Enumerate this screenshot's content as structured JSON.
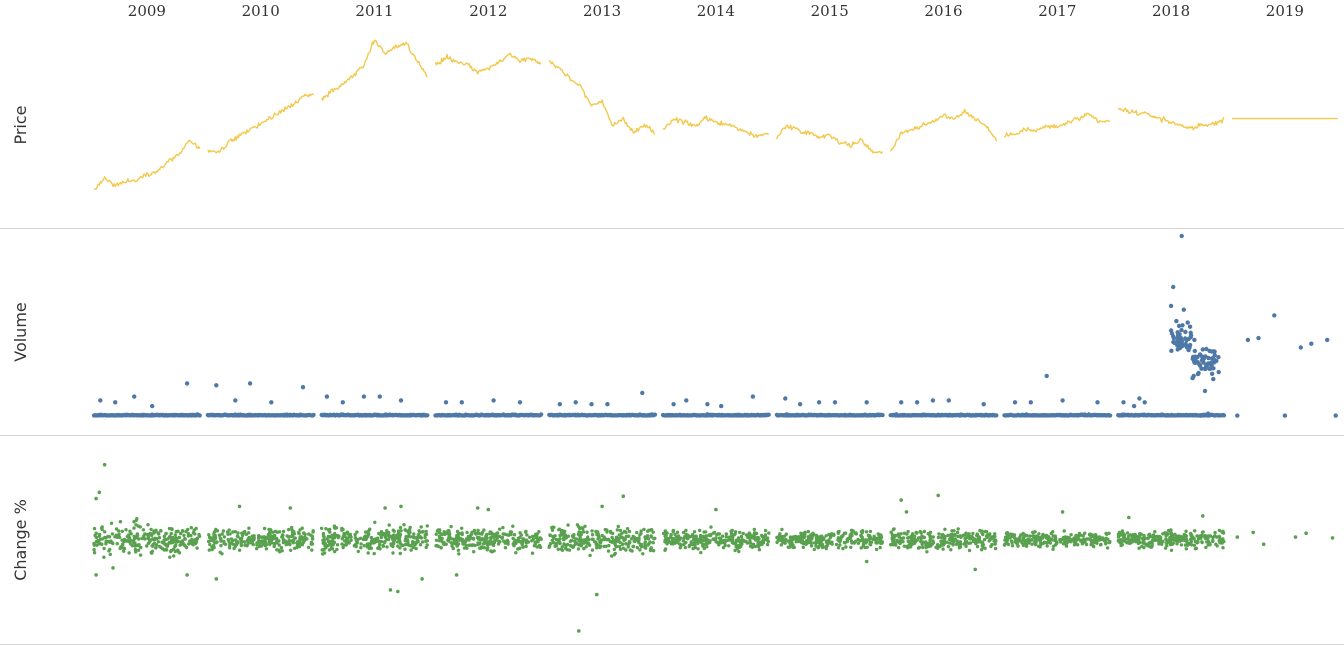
{
  "chart_data": {
    "type": "scatter",
    "layout": "small-multiples by year with three stacked panels",
    "years": [
      "2009",
      "2010",
      "2011",
      "2012",
      "2013",
      "2014",
      "2015",
      "2016",
      "2017",
      "2018",
      "2019"
    ],
    "panels": [
      {
        "name": "Price",
        "mark": "line",
        "color": "#f2c94c",
        "ylim": [
          0,
          100
        ],
        "series": [
          {
            "year": "2009",
            "values": [
              8,
              15,
              11,
              13,
              14,
              17,
              19,
              24,
              28,
              36,
              31
            ]
          },
          {
            "year": "2010",
            "values": [
              30,
              29,
              35,
              38,
              42,
              45,
              49,
              52,
              56,
              60,
              62
            ]
          },
          {
            "year": "2011",
            "values": [
              58,
              63,
              68,
              72,
              78,
              92,
              84,
              88,
              90,
              80,
              72
            ]
          },
          {
            "year": "2012",
            "values": [
              78,
              82,
              80,
              78,
              74,
              76,
              79,
              84,
              80,
              82,
              78
            ]
          },
          {
            "year": "2013",
            "values": [
              80,
              76,
              70,
              66,
              55,
              58,
              44,
              48,
              40,
              44,
              40
            ]
          },
          {
            "year": "2014",
            "values": [
              42,
              48,
              46,
              44,
              48,
              46,
              45,
              43,
              40,
              38,
              40
            ]
          },
          {
            "year": "2015",
            "values": [
              38,
              44,
              42,
              40,
              38,
              39,
              35,
              33,
              36,
              30,
              29
            ]
          },
          {
            "year": "2016",
            "values": [
              30,
              40,
              42,
              44,
              46,
              50,
              48,
              52,
              48,
              44,
              36
            ]
          },
          {
            "year": "2017",
            "values": [
              38,
              40,
              42,
              41,
              44,
              43,
              46,
              48,
              50,
              46,
              47
            ]
          },
          {
            "year": "2018",
            "values": [
              53,
              52,
              51,
              50,
              48,
              46,
              44,
              43,
              44,
              45,
              48
            ]
          },
          {
            "year": "2019",
            "values": [
              48,
              48,
              48,
              48,
              48,
              48,
              48,
              48,
              48,
              48,
              48
            ]
          }
        ]
      },
      {
        "name": "Volume",
        "mark": "scatter",
        "color": "#4e79a7",
        "ylim": [
          0,
          100
        ],
        "baseline": 5,
        "outliers": [
          {
            "year": "2009",
            "points": [
              [
                0.06,
                13
              ],
              [
                0.2,
                12
              ],
              [
                0.38,
                15
              ],
              [
                0.55,
                10
              ],
              [
                0.88,
                22
              ]
            ]
          },
          {
            "year": "2010",
            "points": [
              [
                0.08,
                21
              ],
              [
                0.26,
                13
              ],
              [
                0.4,
                22
              ],
              [
                0.6,
                12
              ],
              [
                0.9,
                20
              ]
            ]
          },
          {
            "year": "2011",
            "points": [
              [
                0.05,
                15
              ],
              [
                0.2,
                12
              ],
              [
                0.4,
                15
              ],
              [
                0.55,
                15
              ],
              [
                0.75,
                13
              ]
            ]
          },
          {
            "year": "2012",
            "points": [
              [
                0.1,
                12
              ],
              [
                0.25,
                12
              ],
              [
                0.55,
                13
              ],
              [
                0.8,
                12
              ]
            ]
          },
          {
            "year": "2013",
            "points": [
              [
                0.1,
                11
              ],
              [
                0.25,
                12
              ],
              [
                0.4,
                11
              ],
              [
                0.55,
                11
              ],
              [
                0.88,
                17
              ]
            ]
          },
          {
            "year": "2014",
            "points": [
              [
                0.1,
                11
              ],
              [
                0.22,
                13
              ],
              [
                0.42,
                11
              ],
              [
                0.55,
                10
              ],
              [
                0.85,
                15
              ]
            ]
          },
          {
            "year": "2015",
            "points": [
              [
                0.08,
                14
              ],
              [
                0.22,
                11
              ],
              [
                0.4,
                12
              ],
              [
                0.55,
                12
              ],
              [
                0.85,
                12
              ]
            ]
          },
          {
            "year": "2016",
            "points": [
              [
                0.1,
                12
              ],
              [
                0.25,
                12
              ],
              [
                0.4,
                13
              ],
              [
                0.55,
                13
              ],
              [
                0.88,
                11
              ]
            ]
          },
          {
            "year": "2017",
            "points": [
              [
                0.1,
                12
              ],
              [
                0.25,
                12
              ],
              [
                0.4,
                26
              ],
              [
                0.55,
                13
              ],
              [
                0.88,
                12
              ]
            ]
          },
          {
            "year": "2018",
            "points": [
              [
                0.05,
                12
              ],
              [
                0.15,
                10
              ],
              [
                0.2,
                14
              ],
              [
                0.25,
                12
              ],
              [
                0.6,
                100
              ],
              [
                0.52,
                73
              ],
              [
                0.5,
                63
              ],
              [
                0.62,
                61
              ],
              [
                0.55,
                55
              ],
              [
                0.68,
                52
              ],
              [
                0.58,
                48
              ],
              [
                0.72,
                45
              ],
              [
                0.65,
                41
              ],
              [
                0.8,
                40
              ],
              [
                0.75,
                36
              ],
              [
                0.9,
                30
              ],
              [
                0.95,
                28
              ],
              [
                0.82,
                18
              ],
              [
                0.85,
                6
              ],
              [
                0.78,
                5
              ]
            ]
          },
          {
            "year": "2019",
            "points": [
              [
                0.05,
                5
              ],
              [
                0.15,
                45
              ],
              [
                0.25,
                46
              ],
              [
                0.4,
                58
              ],
              [
                0.5,
                5
              ],
              [
                0.65,
                41
              ],
              [
                0.75,
                43
              ],
              [
                0.9,
                45
              ],
              [
                0.98,
                5
              ]
            ]
          }
        ]
      },
      {
        "name": "Change %",
        "mark": "scatter",
        "color": "#59a14f",
        "ylim": [
          -12,
          12
        ],
        "clusters": [
          {
            "year": "2009",
            "spread": 3.2,
            "extremes": [
              [
                0.02,
                5.2
              ],
              [
                0.05,
                6.0
              ],
              [
                0.1,
                9.5
              ],
              [
                0.18,
                -3.6
              ],
              [
                0.02,
                -4.5
              ],
              [
                0.88,
                -4.5
              ]
            ]
          },
          {
            "year": "2010",
            "spread": 2.4,
            "extremes": [
              [
                0.08,
                -5.0
              ],
              [
                0.78,
                4.0
              ],
              [
                0.3,
                4.2
              ]
            ]
          },
          {
            "year": "2011",
            "spread": 2.8,
            "extremes": [
              [
                0.65,
                -6.4
              ],
              [
                0.72,
                -6.6
              ],
              [
                0.6,
                4.0
              ],
              [
                0.75,
                4.2
              ],
              [
                0.95,
                -5.0
              ]
            ]
          },
          {
            "year": "2012",
            "spread": 2.5,
            "extremes": [
              [
                0.4,
                4.0
              ],
              [
                0.5,
                3.8
              ],
              [
                0.2,
                -4.5
              ]
            ]
          },
          {
            "year": "2013",
            "spread": 2.8,
            "extremes": [
              [
                0.28,
                -11.6
              ],
              [
                0.45,
                -7.0
              ],
              [
                0.7,
                5.5
              ],
              [
                0.5,
                4.2
              ]
            ]
          },
          {
            "year": "2014",
            "spread": 2.0,
            "extremes": [
              [
                0.5,
                3.8
              ]
            ]
          },
          {
            "year": "2015",
            "spread": 2.0,
            "extremes": [
              [
                0.85,
                -2.8
              ]
            ]
          },
          {
            "year": "2016",
            "spread": 2.2,
            "extremes": [
              [
                0.1,
                5.0
              ],
              [
                0.45,
                5.6
              ],
              [
                0.15,
                3.5
              ],
              [
                0.8,
                -3.8
              ]
            ]
          },
          {
            "year": "2017",
            "spread": 1.6,
            "extremes": [
              [
                0.55,
                3.5
              ]
            ]
          },
          {
            "year": "2018",
            "spread": 1.8,
            "extremes": [
              [
                0.1,
                2.8
              ],
              [
                0.8,
                3.0
              ]
            ]
          },
          {
            "year": "2019",
            "spread": 0.7,
            "extremes": [
              [
                0.05,
                0.3
              ],
              [
                0.2,
                0.9
              ],
              [
                0.3,
                -0.6
              ],
              [
                0.6,
                0.3
              ],
              [
                0.7,
                0.8
              ],
              [
                0.95,
                0.2
              ]
            ]
          }
        ]
      }
    ]
  }
}
